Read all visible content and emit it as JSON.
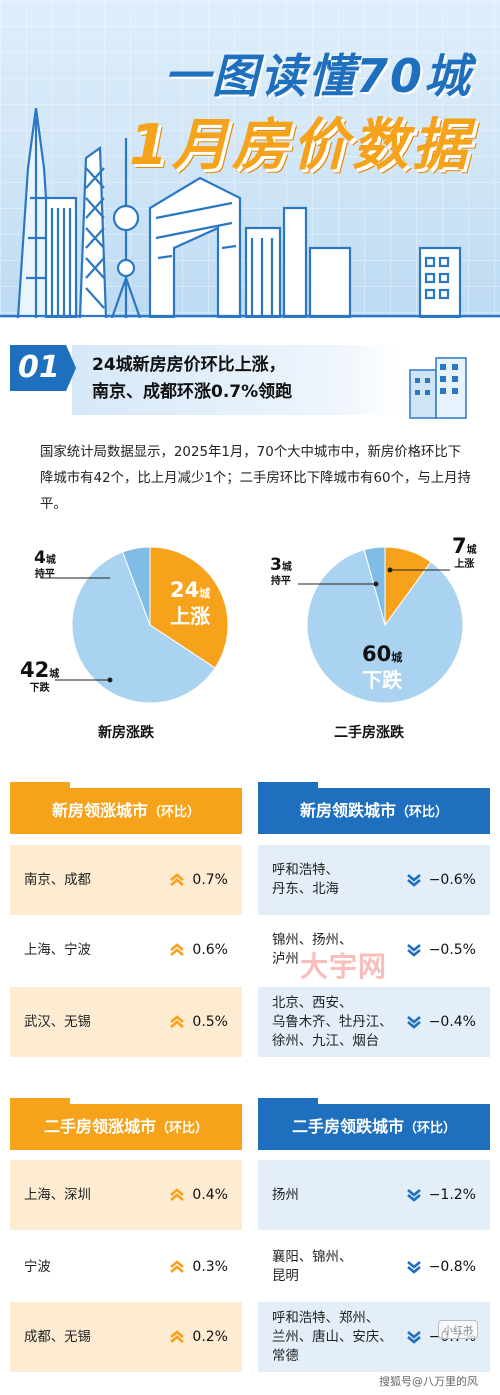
{
  "header": {
    "title_line1": "一图读懂70城",
    "title_line2": "1月房价数据"
  },
  "section": {
    "number": "01",
    "title_line1": "24城新房房价环比上涨，",
    "title_line2": "南京、成都环涨0.7%领跑"
  },
  "intro": "国家统计局数据显示，2025年1月，70个大中城市中，新房价格环比下降城市有42个，比上月减少1个；二手房环比下降城市有60个，与上月持平。",
  "chart_data": [
    {
      "type": "pie",
      "title": "新房涨跌",
      "series": [
        {
          "name": "上涨",
          "value": 24,
          "label_num": "24",
          "label_unit": "城",
          "label_text": "上涨",
          "color": "#f6a21b"
        },
        {
          "name": "下跌",
          "value": 42,
          "label_num": "42",
          "label_unit": "城",
          "label_text": "下跌",
          "color": "#a9d3f0"
        },
        {
          "name": "持平",
          "value": 4,
          "label_num": "4",
          "label_unit": "城",
          "label_text": "持平",
          "color": "#7fbce6"
        }
      ]
    },
    {
      "type": "pie",
      "title": "二手房涨跌",
      "series": [
        {
          "name": "上涨",
          "value": 7,
          "label_num": "7",
          "label_unit": "城",
          "label_text": "上涨",
          "color": "#f6a21b"
        },
        {
          "name": "下跌",
          "value": 60,
          "label_num": "60",
          "label_unit": "城",
          "label_text": "下跌",
          "color": "#a9d3f0"
        },
        {
          "name": "持平",
          "value": 3,
          "label_num": "3",
          "label_unit": "城",
          "label_text": "持平",
          "color": "#7fbce6"
        }
      ]
    }
  ],
  "tables": {
    "new_up": {
      "title": "新房领涨城市",
      "sub": "（环比）",
      "rows": [
        {
          "city": "南京、成都",
          "change": "0.7%"
        },
        {
          "city": "上海、宁波",
          "change": "0.6%"
        },
        {
          "city": "武汉、无锡",
          "change": "0.5%"
        }
      ]
    },
    "new_down": {
      "title": "新房领跌城市",
      "sub": "（环比）",
      "rows": [
        {
          "city": "呼和浩特、\n丹东、北海",
          "change": "−0.6%"
        },
        {
          "city": "锦州、扬州、\n泸州",
          "change": "−0.5%"
        },
        {
          "city": "北京、西安、\n乌鲁木齐、牡丹江、\n徐州、九江、烟台",
          "change": "−0.4%"
        }
      ]
    },
    "used_up": {
      "title": "二手房领涨城市",
      "sub": "（环比）",
      "rows": [
        {
          "city": "上海、深圳",
          "change": "0.4%"
        },
        {
          "city": "宁波",
          "change": "0.3%"
        },
        {
          "city": "成都、无锡",
          "change": "0.2%"
        }
      ]
    },
    "used_down": {
      "title": "二手房领跌城市",
      "sub": "（环比）",
      "rows": [
        {
          "city": "扬州",
          "change": "−1.2%"
        },
        {
          "city": "襄阳、锦州、\n昆明",
          "change": "−0.8%"
        },
        {
          "city": "呼和浩特、郑州、\n兰州、唐山、安庆、\n常德",
          "change": "−0.7%"
        }
      ]
    }
  },
  "watermark": "大宇网",
  "corner_tag": "小红书",
  "credit": "搜狐号@八万里的风",
  "colors": {
    "accent_blue": "#1f6fbf",
    "accent_orange": "#f6a21b"
  }
}
